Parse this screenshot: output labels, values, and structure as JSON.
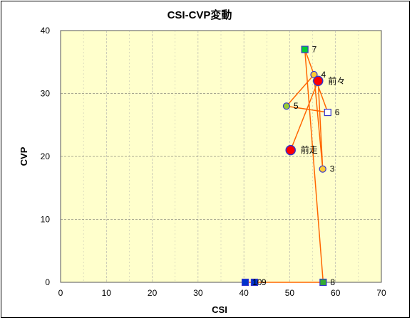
{
  "chart_data": {
    "type": "scatter",
    "title": "CSI-CVP変動",
    "xlabel": "CSI",
    "ylabel": "CVP",
    "xlim": [
      0,
      70
    ],
    "ylim": [
      0,
      40
    ],
    "xticks": [
      0,
      10,
      20,
      30,
      40,
      50,
      60,
      70
    ],
    "yticks": [
      0,
      10,
      20,
      30,
      40
    ],
    "grid": true,
    "colors": {
      "plot_bg": "#ffffcc",
      "grid": "#aaaaaa",
      "line": "#ff6600",
      "circle_fill": "#ffcc33",
      "circle_stroke": "#3333cc",
      "big_circle_fill": "#ff0000",
      "green": "#00cc33",
      "dark_green": "#33aa33",
      "navy": "#0033cc",
      "hollow": "#ffffff"
    },
    "path_order": [
      "前走",
      "前々",
      "3",
      "4",
      "5",
      "6",
      "7",
      "8",
      "9",
      "10"
    ],
    "points": [
      {
        "label": "前走",
        "x": 50.2,
        "y": 21,
        "marker": "big-circle"
      },
      {
        "label": "前々",
        "x": 56.2,
        "y": 32,
        "marker": "big-circle"
      },
      {
        "label": "3",
        "x": 57.2,
        "y": 18,
        "marker": "circle"
      },
      {
        "label": "4",
        "x": 55.3,
        "y": 33,
        "marker": "circle"
      },
      {
        "label": "5",
        "x": 49.3,
        "y": 28,
        "marker": "circle-green"
      },
      {
        "label": "6",
        "x": 58.3,
        "y": 27,
        "marker": "square-hollow"
      },
      {
        "label": "7",
        "x": 53.3,
        "y": 37,
        "marker": "square-green"
      },
      {
        "label": "8",
        "x": 57.3,
        "y": 0,
        "marker": "square-darkgreen"
      },
      {
        "label": "9",
        "x": 42.3,
        "y": 0,
        "marker": "square-navy"
      },
      {
        "label": "10",
        "x": 40.3,
        "y": 0,
        "marker": "square-navy"
      }
    ]
  }
}
